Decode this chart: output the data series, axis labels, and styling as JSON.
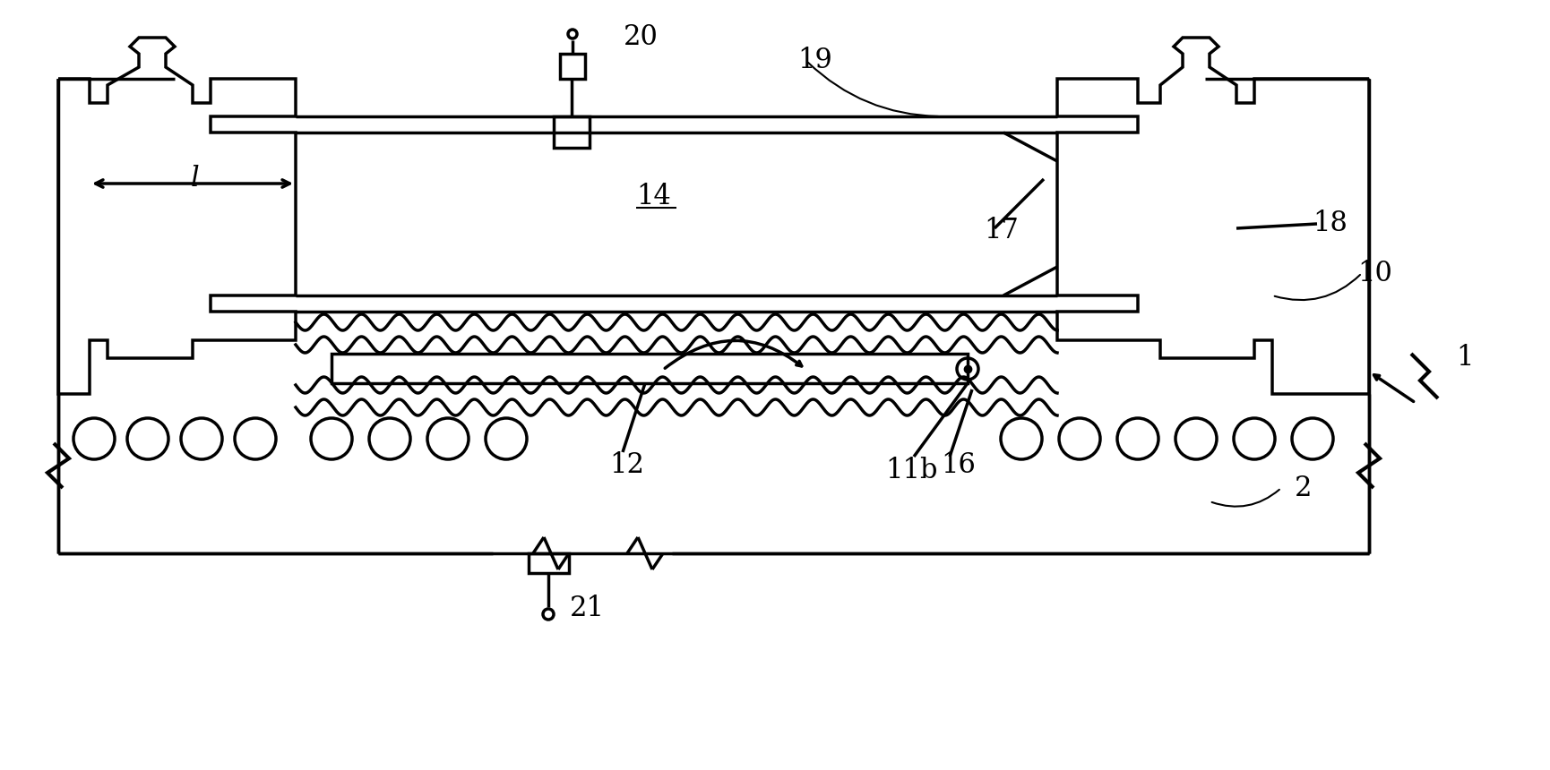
{
  "bg_color": "#ffffff",
  "line_color": "#000000",
  "lw": 2.5,
  "lw_thin": 1.5,
  "fig_width": 17.31,
  "fig_height": 8.6
}
